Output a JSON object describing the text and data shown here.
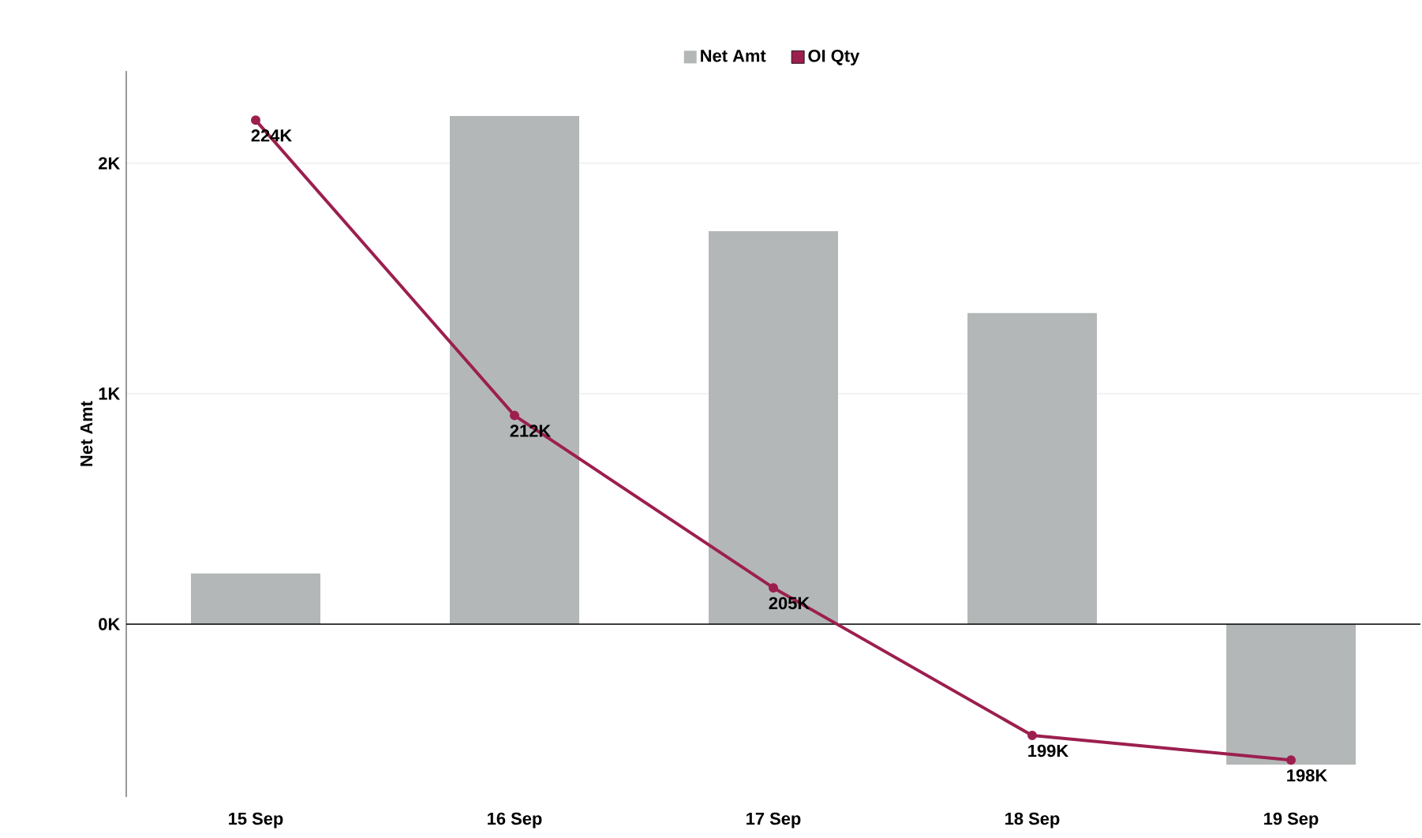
{
  "chart_data": {
    "type": "bar",
    "ylabel": "Net Amt",
    "categories": [
      "15 Sep",
      "16 Sep",
      "17 Sep",
      "18 Sep",
      "19 Sep"
    ],
    "series": [
      {
        "name": "Net Amt",
        "color": "#b4b7b7",
        "values": [
          220,
          2205,
          1705,
          1350,
          -610
        ]
      },
      {
        "name": "OI Qty",
        "type": "line",
        "axis": "y2",
        "color": "#9c1f4f",
        "marker": "circle",
        "values": [
          224000,
          212000,
          205000,
          199000,
          198000
        ],
        "value_labels": [
          "224K",
          "212K",
          "205K",
          "199K",
          "198K"
        ]
      }
    ],
    "ylim": [
      -750,
      2400
    ],
    "yticks": [
      {
        "value": 0,
        "label": "0K"
      },
      {
        "value": 1000,
        "label": "1K"
      },
      {
        "value": 2000,
        "label": "2K"
      }
    ],
    "y2lim": [
      196500,
      226000
    ],
    "ref_lines": [
      {
        "axis": "y",
        "value": 0,
        "color": "#000000"
      }
    ],
    "grid": "y",
    "legend": "top"
  }
}
